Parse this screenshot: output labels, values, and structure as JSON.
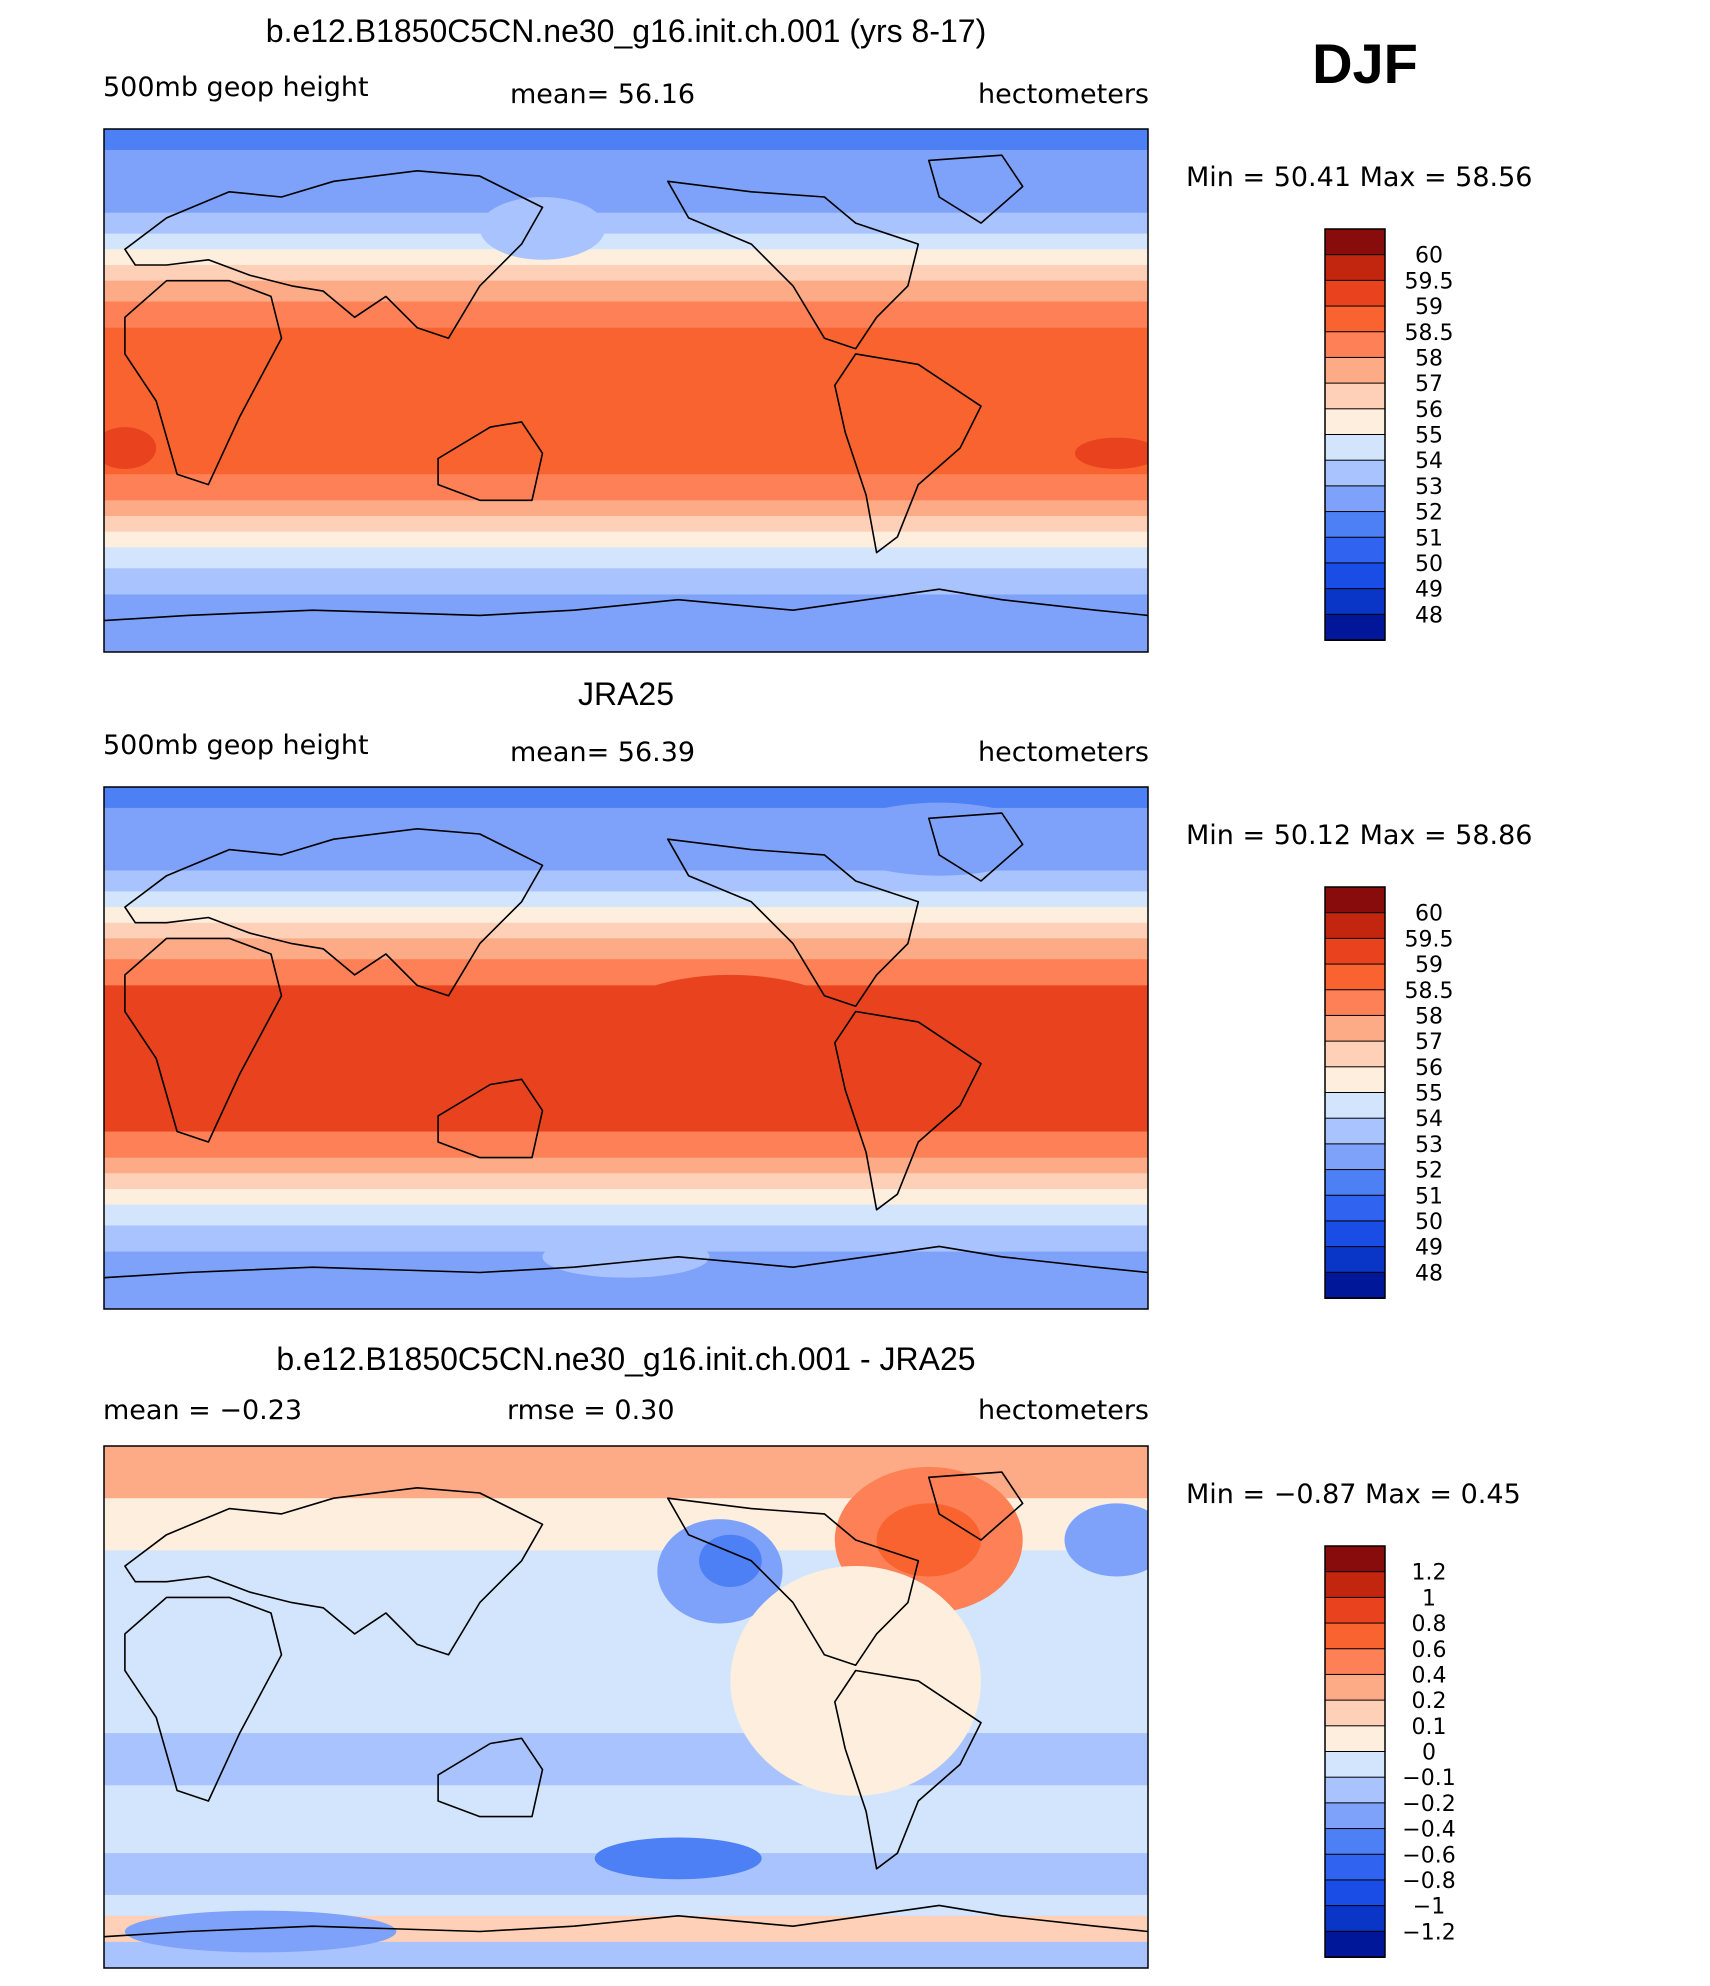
{
  "figure": {
    "season": "DJF"
  },
  "colors": {
    "field": [
      "#00007f",
      "#00179a",
      "#0a36c8",
      "#1a4de6",
      "#2f63f0",
      "#4d7ff5",
      "#7ea2fa",
      "#a8c3fd",
      "#d2e5fd",
      "#fdeede",
      "#fdd0b7",
      "#fdaa86",
      "#fd8056",
      "#f9632f",
      "#e8431e",
      "#c3260f",
      "#880c0c"
    ],
    "diff": [
      "#00007f",
      "#00179a",
      "#0a36c8",
      "#1a4de6",
      "#2f63f0",
      "#4d7ff5",
      "#7ea2fa",
      "#a8c3fd",
      "#d2e5fd",
      "#fdeede",
      "#fdd0b7",
      "#fdaa86",
      "#fd8056",
      "#f9632f",
      "#e8431e",
      "#c3260f",
      "#880c0c"
    ]
  },
  "chart_data": [
    {
      "type": "heatmap",
      "title": "b.e12.B1850C5CN.ne30_g16.init.ch.001 (yrs 8-17)",
      "left_label": "500mb geop height",
      "center_label": "mean=   56.16",
      "right_label": "hectometers",
      "minmax_label": "Min =   50.41  Max =   58.56",
      "colorbar_levels": [
        "60",
        "59.5",
        "59",
        "58.5",
        "58",
        "57",
        "56",
        "55",
        "54",
        "53",
        "52",
        "51",
        "50",
        "49",
        "48"
      ],
      "mean": 56.16,
      "min": 50.41,
      "max": 58.56,
      "units": "hectometers"
    },
    {
      "type": "heatmap",
      "title": "JRA25",
      "left_label": "500mb geop height",
      "center_label": "mean=   56.39",
      "right_label": "hectometers",
      "minmax_label": "Min =   50.12  Max =   58.86",
      "colorbar_levels": [
        "60",
        "59.5",
        "59",
        "58.5",
        "58",
        "57",
        "56",
        "55",
        "54",
        "53",
        "52",
        "51",
        "50",
        "49",
        "48"
      ],
      "mean": 56.39,
      "min": 50.12,
      "max": 58.86,
      "units": "hectometers"
    },
    {
      "type": "heatmap",
      "title": "b.e12.B1850C5CN.ne30_g16.init.ch.001 - JRA25",
      "left_label": "mean =   −0.23",
      "center_label": "rmse =    0.30",
      "right_label": "hectometers",
      "minmax_label": "Min =  −0.87  Max =    0.45",
      "colorbar_levels": [
        "1.2",
        "1",
        "0.8",
        "0.6",
        "0.4",
        "0.2",
        "0.1",
        "0",
        "−0.1",
        "−0.2",
        "−0.4",
        "−0.6",
        "−0.8",
        "−1",
        "−1.2"
      ],
      "mean": -0.23,
      "rmse": 0.3,
      "min": -0.87,
      "max": 0.45,
      "units": "hectometers"
    }
  ]
}
